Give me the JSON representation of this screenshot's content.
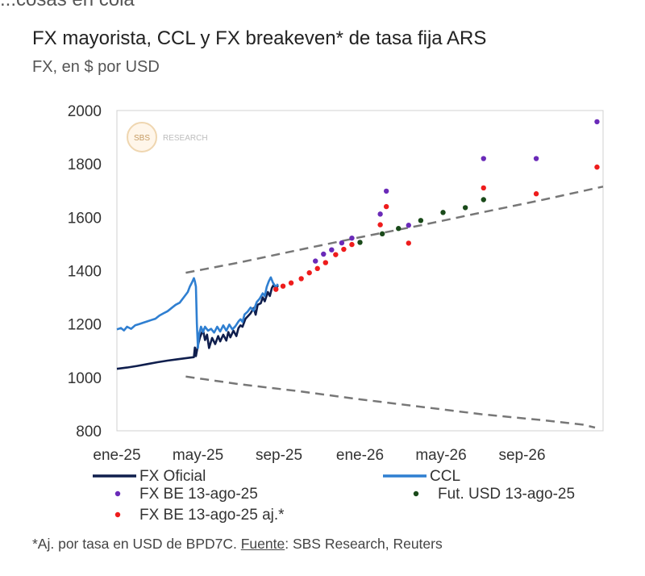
{
  "header": {
    "top_cut_text": "...cosas en cola",
    "title": "FX mayorista, CCL y FX breakeven* de tasa fija ARS",
    "subtitle": "FX, en $ por USD"
  },
  "footnote": {
    "prefix": "*Aj. por tasa en USD de BPD7C. ",
    "source_label": "Fuente",
    "source_text": ": SBS Research, Reuters"
  },
  "watermark": {
    "badge": "SBS",
    "text": "RESEARCH"
  },
  "colors": {
    "fx_oficial": "#0f1e4d",
    "ccl": "#2f7fd1",
    "be_purple": "#6a2ab8",
    "be_red": "#ee1c1c",
    "fut_green": "#1a4a1a",
    "band": "#777777"
  },
  "chart_data": {
    "type": "line",
    "title": "FX mayorista, CCL y FX breakeven* de tasa fija ARS",
    "ylabel": "FX, en $ por USD",
    "ylim": [
      800,
      2000
    ],
    "yticks": [
      800,
      1000,
      1200,
      1400,
      1600,
      1800,
      2000
    ],
    "xlim": [
      0,
      24
    ],
    "xticks": [
      {
        "label": "ene-25",
        "x": 0
      },
      {
        "label": "may-25",
        "x": 4
      },
      {
        "label": "sep-25",
        "x": 8
      },
      {
        "label": "ene-26",
        "x": 12
      },
      {
        "label": "may-26",
        "x": 16
      },
      {
        "label": "sep-26",
        "x": 20
      }
    ],
    "legend": [
      {
        "label": "FX Oficial",
        "kind": "line",
        "key": "fx_oficial"
      },
      {
        "label": "CCL",
        "kind": "line",
        "key": "ccl"
      },
      {
        "label": "FX BE 13-ago-25",
        "kind": "dot",
        "key": "be_purple"
      },
      {
        "label": "Fut. USD 13-ago-25",
        "kind": "dot",
        "key": "fut_green"
      },
      {
        "label": "FX BE 13-ago-25 aj.*",
        "kind": "dot",
        "key": "be_red"
      }
    ],
    "series": [
      {
        "name": "FX Oficial",
        "style": "line",
        "color_key": "fx_oficial",
        "points": [
          [
            0,
            1032
          ],
          [
            0.5,
            1037
          ],
          [
            1,
            1043
          ],
          [
            1.5,
            1050
          ],
          [
            2,
            1057
          ],
          [
            2.5,
            1063
          ],
          [
            3,
            1068
          ],
          [
            3.5,
            1073
          ],
          [
            3.8,
            1076
          ],
          [
            3.85,
            1112
          ],
          [
            3.9,
            1080
          ],
          [
            4,
            1120
          ],
          [
            4.1,
            1150
          ],
          [
            4.25,
            1178
          ],
          [
            4.35,
            1140
          ],
          [
            4.45,
            1160
          ],
          [
            4.55,
            1110
          ],
          [
            4.7,
            1148
          ],
          [
            4.85,
            1125
          ],
          [
            5,
            1155
          ],
          [
            5.1,
            1135
          ],
          [
            5.25,
            1160
          ],
          [
            5.4,
            1138
          ],
          [
            5.5,
            1170
          ],
          [
            5.6,
            1150
          ],
          [
            5.75,
            1175
          ],
          [
            5.9,
            1155
          ],
          [
            6,
            1185
          ],
          [
            6.1,
            1195
          ],
          [
            6.2,
            1190
          ],
          [
            6.35,
            1220
          ],
          [
            6.45,
            1228
          ],
          [
            6.6,
            1240
          ],
          [
            6.75,
            1260
          ],
          [
            6.85,
            1235
          ],
          [
            6.95,
            1272
          ],
          [
            7.1,
            1278
          ],
          [
            7.2,
            1300
          ],
          [
            7.3,
            1285
          ],
          [
            7.45,
            1320
          ],
          [
            7.55,
            1305
          ],
          [
            7.65,
            1335
          ],
          [
            7.75,
            1348
          ],
          [
            7.85,
            1330
          ],
          [
            7.95,
            1345
          ]
        ]
      },
      {
        "name": "CCL",
        "style": "line",
        "color_key": "ccl",
        "points": [
          [
            0,
            1180
          ],
          [
            0.2,
            1185
          ],
          [
            0.35,
            1176
          ],
          [
            0.5,
            1190
          ],
          [
            0.7,
            1182
          ],
          [
            0.9,
            1195
          ],
          [
            1.1,
            1200
          ],
          [
            1.3,
            1205
          ],
          [
            1.5,
            1210
          ],
          [
            1.7,
            1215
          ],
          [
            1.9,
            1220
          ],
          [
            2.1,
            1232
          ],
          [
            2.3,
            1240
          ],
          [
            2.5,
            1248
          ],
          [
            2.7,
            1260
          ],
          [
            2.9,
            1272
          ],
          [
            3.1,
            1280
          ],
          [
            3.3,
            1300
          ],
          [
            3.5,
            1320
          ],
          [
            3.6,
            1340
          ],
          [
            3.7,
            1355
          ],
          [
            3.8,
            1372
          ],
          [
            3.85,
            1360
          ],
          [
            3.9,
            1340
          ],
          [
            3.95,
            1200
          ],
          [
            4,
            1110
          ],
          [
            4.05,
            1160
          ],
          [
            4.15,
            1190
          ],
          [
            4.25,
            1170
          ],
          [
            4.35,
            1190
          ],
          [
            4.5,
            1175
          ],
          [
            4.65,
            1182
          ],
          [
            4.8,
            1168
          ],
          [
            4.95,
            1190
          ],
          [
            5.1,
            1172
          ],
          [
            5.25,
            1195
          ],
          [
            5.4,
            1175
          ],
          [
            5.55,
            1198
          ],
          [
            5.7,
            1180
          ],
          [
            5.85,
            1192
          ],
          [
            6,
            1210
          ],
          [
            6.1,
            1218
          ],
          [
            6.2,
            1208
          ],
          [
            6.3,
            1236
          ],
          [
            6.45,
            1246
          ],
          [
            6.6,
            1262
          ],
          [
            6.75,
            1250
          ],
          [
            6.9,
            1282
          ],
          [
            7.05,
            1295
          ],
          [
            7.2,
            1315
          ],
          [
            7.3,
            1305
          ],
          [
            7.4,
            1340
          ],
          [
            7.5,
            1360
          ],
          [
            7.6,
            1375
          ],
          [
            7.7,
            1355
          ],
          [
            7.85,
            1338
          ],
          [
            7.95,
            1350
          ]
        ]
      },
      {
        "name": "Banda superior",
        "style": "dashed",
        "color_key": "band",
        "points": [
          [
            3.4,
            1392
          ],
          [
            6,
            1430
          ],
          [
            9,
            1478
          ],
          [
            12,
            1525
          ],
          [
            15,
            1570
          ],
          [
            18,
            1618
          ],
          [
            21,
            1665
          ],
          [
            24,
            1715
          ]
        ]
      },
      {
        "name": "Banda inferior",
        "style": "dashed",
        "color_key": "band",
        "points": [
          [
            3.4,
            1003
          ],
          [
            6,
            975
          ],
          [
            9,
            948
          ],
          [
            12,
            918
          ],
          [
            15,
            890
          ],
          [
            18,
            862
          ],
          [
            21,
            840
          ],
          [
            23,
            823
          ],
          [
            23.6,
            812
          ]
        ]
      },
      {
        "name": "FX BE 13-ago-25",
        "style": "dots",
        "color_key": "be_purple",
        "points": [
          [
            9.8,
            1436
          ],
          [
            10.2,
            1462
          ],
          [
            10.6,
            1478
          ],
          [
            11.1,
            1504
          ],
          [
            11.6,
            1522
          ],
          [
            13,
            1612
          ],
          [
            13.3,
            1698
          ],
          [
            14.4,
            1570
          ],
          [
            18.1,
            1820
          ],
          [
            20.7,
            1820
          ],
          [
            23.7,
            1958
          ]
        ]
      },
      {
        "name": "FX BE 13-ago-25 aj.*",
        "style": "dots",
        "color_key": "be_red",
        "points": [
          [
            7.85,
            1330
          ],
          [
            8.2,
            1342
          ],
          [
            8.6,
            1354
          ],
          [
            9.1,
            1370
          ],
          [
            9.5,
            1392
          ],
          [
            9.9,
            1408
          ],
          [
            10.3,
            1430
          ],
          [
            10.8,
            1460
          ],
          [
            11.2,
            1480
          ],
          [
            11.6,
            1498
          ],
          [
            13,
            1572
          ],
          [
            13.3,
            1640
          ],
          [
            14.4,
            1503
          ],
          [
            18.1,
            1710
          ],
          [
            20.7,
            1688
          ],
          [
            23.7,
            1788
          ]
        ]
      },
      {
        "name": "Fut. USD 13-ago-25",
        "style": "dots",
        "color_key": "fut_green",
        "points": [
          [
            12,
            1506
          ],
          [
            13.1,
            1538
          ],
          [
            13.9,
            1558
          ],
          [
            15,
            1588
          ],
          [
            16.1,
            1618
          ],
          [
            17.2,
            1636
          ],
          [
            18.1,
            1666
          ]
        ]
      }
    ]
  }
}
